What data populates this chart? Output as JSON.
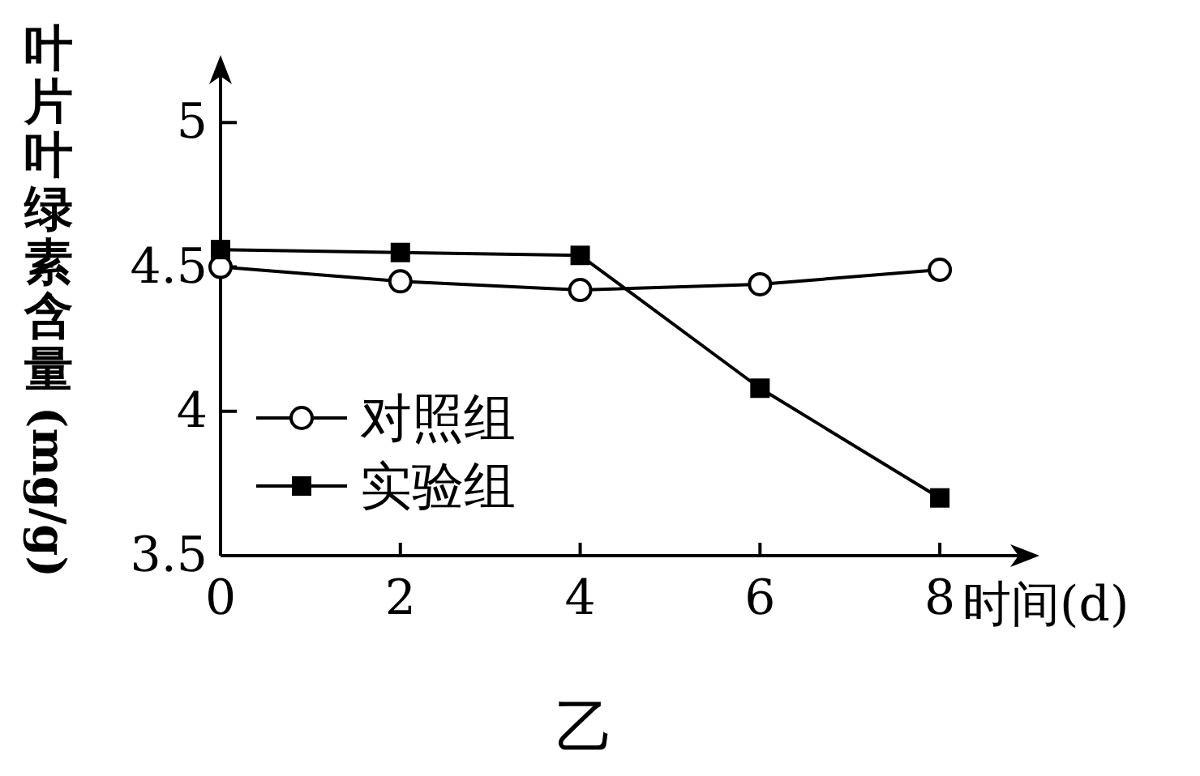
{
  "chart_data": {
    "type": "line",
    "title": "乙",
    "xlabel": "时间(d)",
    "ylabel": "叶片叶绿素含量(mg/g)",
    "x": [
      0,
      2,
      4,
      6,
      8
    ],
    "xlim": [
      0,
      9
    ],
    "xticks": [
      0,
      2,
      4,
      6,
      8
    ],
    "ylim": [
      3.5,
      5.2
    ],
    "yticks": [
      3.5,
      4,
      4.5,
      5
    ],
    "series": [
      {
        "name": "对照组",
        "color": "#000000",
        "marker": "circle",
        "values": [
          4.5,
          4.45,
          4.42,
          4.44,
          4.49
        ]
      },
      {
        "name": "实验组",
        "color": "#000000",
        "marker": "square",
        "values": [
          4.56,
          4.55,
          4.54,
          4.08,
          3.7
        ]
      }
    ],
    "legend": "bottom left",
    "grid": false
  }
}
